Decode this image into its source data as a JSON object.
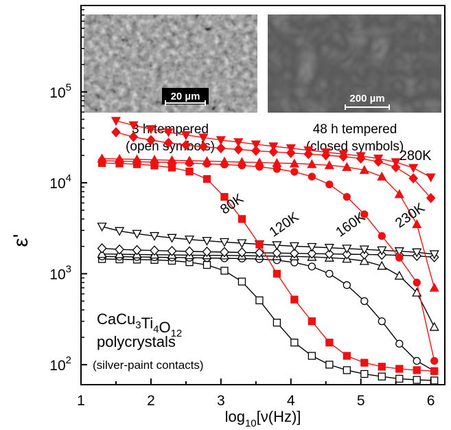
{
  "chart_data": {
    "type": "line",
    "xlabel": "log10[ν(Hz)]",
    "xlabel_parts": {
      "main": "log",
      "sub": "10",
      "rest": "[ν(Hz)]"
    },
    "ylabel": "ε'",
    "xlim": [
      1,
      6.2
    ],
    "ylim_log10": [
      1.78,
      5.95
    ],
    "y_scale": "log",
    "x_ticks": [
      1,
      2,
      3,
      4,
      5,
      6
    ],
    "y_ticks": [
      {
        "log": 2,
        "base": "10",
        "exp": "2"
      },
      {
        "log": 3,
        "base": "10",
        "exp": "3"
      },
      {
        "log": 4,
        "base": "10",
        "exp": "4"
      },
      {
        "log": 5,
        "base": "10",
        "exp": "5"
      }
    ],
    "colors": {
      "closed": "#ee1111",
      "open": "#000000"
    },
    "series": [
      {
        "temperature": "80K",
        "sample": "3 h tempered",
        "style": "open",
        "marker": "square",
        "x": [
          1.3,
          1.55,
          1.8,
          2.05,
          2.3,
          2.55,
          2.8,
          3.05,
          3.3,
          3.55,
          3.8,
          4.05,
          4.3,
          4.55,
          4.8,
          5.05,
          5.3,
          5.55,
          5.8,
          6.05
        ],
        "y": [
          1450,
          1440,
          1430,
          1420,
          1390,
          1340,
          1250,
          1080,
          820,
          510,
          290,
          175,
          125,
          100,
          87,
          79,
          74,
          70,
          68,
          67
        ]
      },
      {
        "temperature": "120K",
        "sample": "3 h tempered",
        "style": "open",
        "marker": "circle",
        "x": [
          1.3,
          1.55,
          1.8,
          2.05,
          2.3,
          2.55,
          2.8,
          3.05,
          3.3,
          3.55,
          3.8,
          4.05,
          4.3,
          4.55,
          4.8,
          5.05,
          5.3,
          5.55,
          5.8,
          6.05
        ],
        "y": [
          1550,
          1540,
          1530,
          1520,
          1510,
          1500,
          1490,
          1480,
          1470,
          1450,
          1410,
          1330,
          1200,
          1000,
          750,
          500,
          300,
          170,
          110,
          85
        ]
      },
      {
        "temperature": "160K",
        "sample": "3 h tempered",
        "style": "open",
        "marker": "triangle-up",
        "x": [
          1.3,
          1.55,
          1.8,
          2.05,
          2.3,
          2.55,
          2.8,
          3.05,
          3.3,
          3.55,
          3.8,
          4.05,
          4.3,
          4.55,
          4.8,
          5.05,
          5.3,
          5.55,
          5.8,
          6.05
        ],
        "y": [
          1650,
          1640,
          1630,
          1620,
          1610,
          1600,
          1595,
          1590,
          1580,
          1570,
          1560,
          1550,
          1530,
          1500,
          1460,
          1380,
          1220,
          950,
          620,
          260
        ]
      },
      {
        "temperature": "230K",
        "sample": "3 h tempered",
        "style": "open",
        "marker": "diamond",
        "x": [
          1.3,
          1.55,
          1.8,
          2.05,
          2.3,
          2.55,
          2.8,
          3.05,
          3.3,
          3.55,
          3.8,
          4.05,
          4.3,
          4.55,
          4.8,
          5.05,
          5.3,
          5.55,
          5.8,
          6.05
        ],
        "y": [
          1900,
          1850,
          1820,
          1800,
          1780,
          1760,
          1745,
          1730,
          1715,
          1700,
          1690,
          1675,
          1665,
          1650,
          1640,
          1630,
          1615,
          1595,
          1570,
          1520
        ]
      },
      {
        "temperature": "280K",
        "sample": "3 h tempered",
        "style": "open",
        "marker": "triangle-down",
        "x": [
          1.3,
          1.55,
          1.8,
          2.05,
          2.3,
          2.55,
          2.8,
          3.05,
          3.3,
          3.55,
          3.8,
          4.05,
          4.3,
          4.55,
          4.8,
          5.05,
          5.3,
          5.55,
          5.8,
          6.05
        ],
        "y": [
          3300,
          2950,
          2750,
          2600,
          2480,
          2380,
          2300,
          2230,
          2170,
          2110,
          2060,
          2010,
          1970,
          1930,
          1890,
          1850,
          1810,
          1770,
          1720,
          1640
        ]
      },
      {
        "temperature": "80K",
        "sample": "48 h tempered",
        "style": "closed",
        "marker": "square",
        "x": [
          1.3,
          1.55,
          1.8,
          2.05,
          2.3,
          2.55,
          2.8,
          3.05,
          3.3,
          3.55,
          3.8,
          4.05,
          4.3,
          4.55,
          4.8,
          5.05,
          5.3,
          5.55,
          5.8,
          6.05
        ],
        "y": [
          16500,
          16300,
          16000,
          15500,
          14700,
          13300,
          11000,
          7000,
          4000,
          2100,
          1000,
          520,
          300,
          175,
          125,
          105,
          95,
          90,
          87,
          85
        ]
      },
      {
        "temperature": "120K",
        "sample": "48 h tempered",
        "style": "closed",
        "marker": "circle",
        "x": [
          1.3,
          1.55,
          1.8,
          2.05,
          2.3,
          2.55,
          2.8,
          3.05,
          3.3,
          3.55,
          3.8,
          4.05,
          4.3,
          4.55,
          4.8,
          5.05,
          5.3,
          5.55,
          5.8,
          6.05
        ],
        "y": [
          17500,
          17300,
          17100,
          16900,
          16700,
          16500,
          16200,
          15900,
          15500,
          15000,
          14200,
          13200,
          11700,
          9600,
          7000,
          4500,
          2600,
          1500,
          800,
          110
        ]
      },
      {
        "temperature": "160K",
        "sample": "48 h tempered",
        "style": "closed",
        "marker": "triangle-up",
        "x": [
          1.3,
          1.55,
          1.8,
          2.05,
          2.3,
          2.55,
          2.8,
          3.05,
          3.3,
          3.55,
          3.8,
          4.05,
          4.3,
          4.55,
          4.8,
          5.05,
          5.3,
          5.55,
          5.8,
          6.05
        ],
        "y": [
          18500,
          18300,
          18100,
          17900,
          17700,
          17500,
          17300,
          17100,
          16900,
          16700,
          16500,
          16300,
          16000,
          15600,
          14900,
          13800,
          11700,
          7500,
          3500,
          700
        ]
      },
      {
        "temperature": "230K",
        "sample": "48 h tempered",
        "style": "closed",
        "marker": "diamond",
        "x": [
          1.5,
          1.75,
          2.0,
          2.25,
          2.5,
          2.75,
          3.0,
          3.25,
          3.5,
          3.75,
          4.0,
          4.25,
          4.5,
          4.75,
          5.0,
          5.25,
          5.5,
          5.75,
          6.0
        ],
        "y": [
          36000,
          32000,
          29500,
          27500,
          26000,
          25000,
          24000,
          23300,
          22500,
          21900,
          21300,
          20700,
          20100,
          19400,
          18500,
          17100,
          14800,
          11200,
          6800
        ]
      },
      {
        "temperature": "280K",
        "sample": "48 h tempered",
        "style": "closed",
        "marker": "triangle-down",
        "x": [
          1.5,
          1.75,
          2.0,
          2.25,
          2.5,
          2.75,
          3.0,
          3.25,
          3.5,
          3.75,
          4.0,
          4.25,
          4.5,
          4.75,
          5.0,
          5.25,
          5.5,
          5.75,
          6.0
        ],
        "y": [
          48000,
          43000,
          39000,
          36000,
          33500,
          31500,
          29500,
          28000,
          26500,
          25200,
          24000,
          22800,
          21700,
          20700,
          19700,
          18500,
          16900,
          14600,
          11500
        ]
      }
    ],
    "temperature_labels": [
      {
        "text": "80K",
        "x": 3.05,
        "log": 3.65,
        "angle": -35
      },
      {
        "text": "120K",
        "x": 3.75,
        "log": 3.4,
        "angle": -35
      },
      {
        "text": "160K",
        "x": 4.7,
        "log": 3.4,
        "angle": -35
      },
      {
        "text": "230K",
        "x": 5.55,
        "log": 3.5,
        "angle": -35
      },
      {
        "text": "280K",
        "x": 5.55,
        "log": 4.25,
        "angle": 0
      }
    ],
    "insets": [
      {
        "caption_line1": "3 h tempered",
        "caption_line2": "(open symbols)",
        "scale_bar": "20 µm"
      },
      {
        "caption_line1": "48 h tempered",
        "caption_line2": "(closed symbols)",
        "scale_bar": "200 µm"
      }
    ],
    "material": {
      "formula": [
        {
          "t": "CaCu",
          "sub": false
        },
        {
          "t": "3",
          "sub": true
        },
        {
          "t": "Ti",
          "sub": false
        },
        {
          "t": "4",
          "sub": true
        },
        {
          "t": "O",
          "sub": false
        },
        {
          "t": "12",
          "sub": true
        }
      ],
      "line2": "polycrystals",
      "line3": "(silver-paint contacts)"
    }
  }
}
